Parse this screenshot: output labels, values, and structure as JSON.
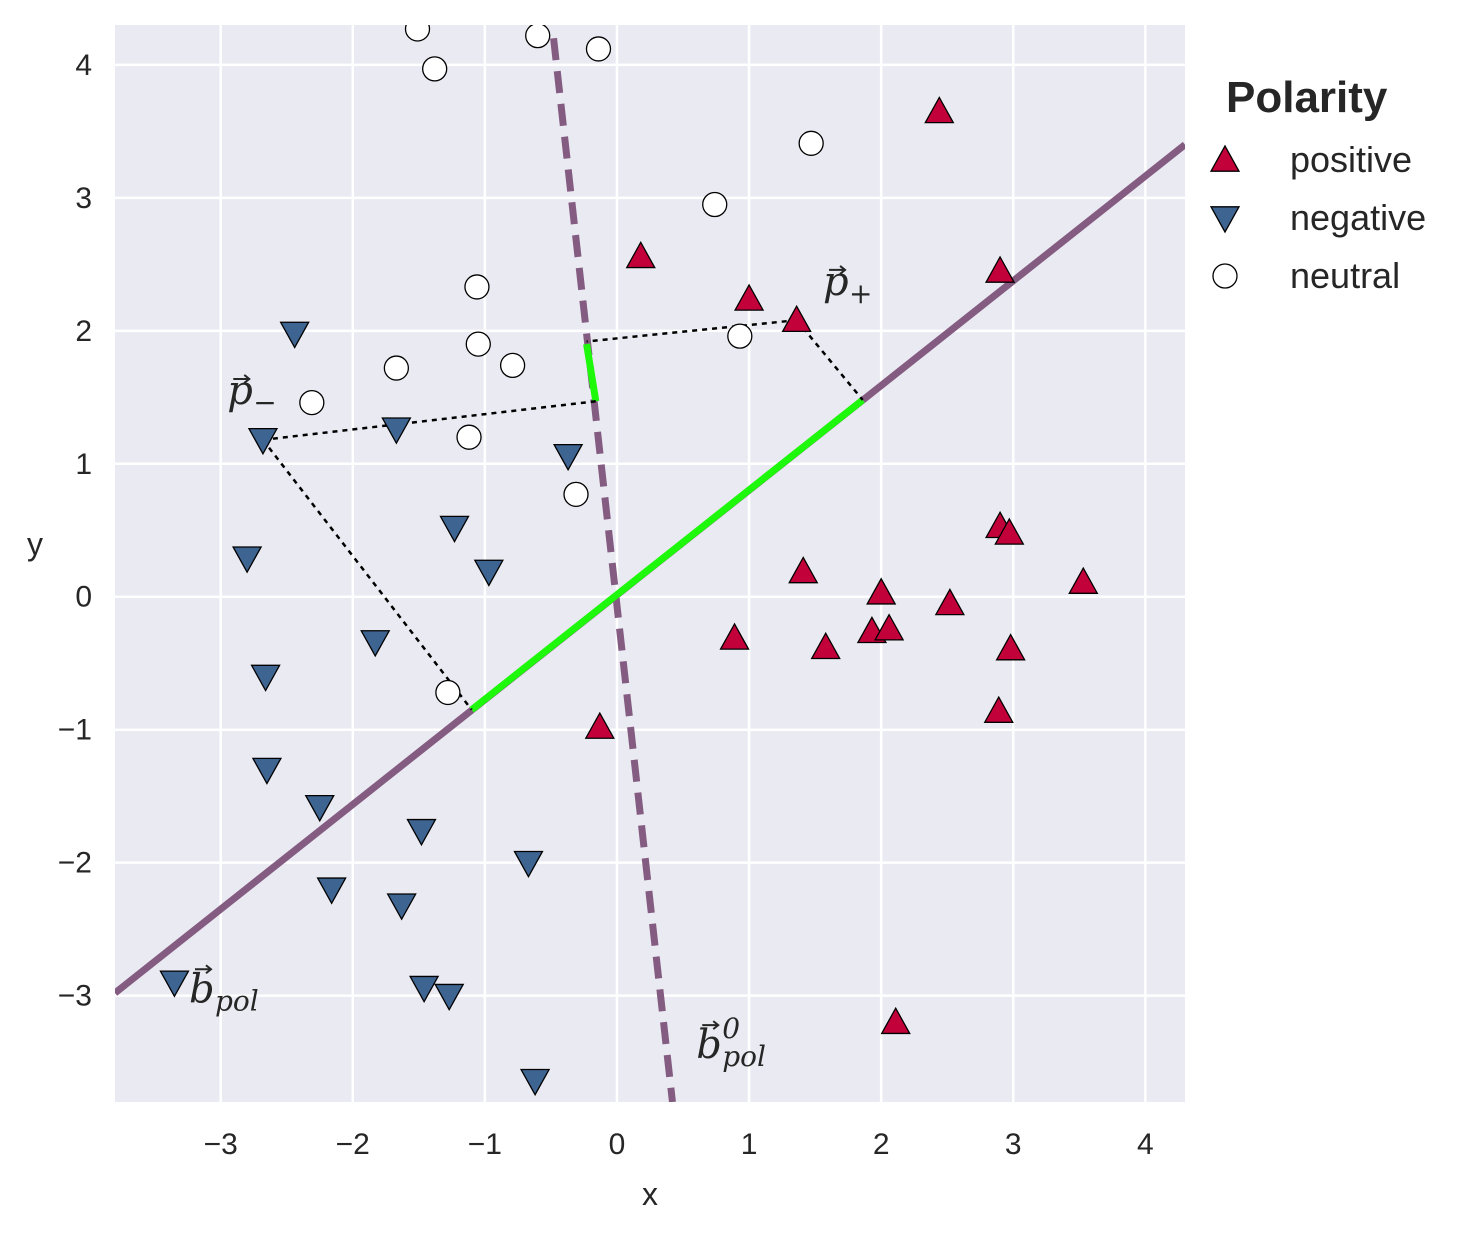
{
  "chart_data": {
    "type": "scatter",
    "xlabel": "x",
    "ylabel": "y",
    "xlim": [
      -3.8,
      4.3
    ],
    "ylim": [
      -3.8,
      4.3
    ],
    "xticks": [
      -3,
      -2,
      -1,
      0,
      1,
      2,
      3,
      4
    ],
    "yticks": [
      -3,
      -2,
      -1,
      0,
      1,
      2,
      3,
      4
    ],
    "xtick_labels": [
      "−3",
      "−2",
      "−1",
      "0",
      "1",
      "2",
      "3",
      "4"
    ],
    "ytick_labels": [
      "−3",
      "−2",
      "−1",
      "0",
      "1",
      "2",
      "3",
      "4"
    ],
    "grid": true,
    "background": "#EAEAF2",
    "legend": {
      "title": "Polarity",
      "placement": "outside-top-right"
    },
    "series": [
      {
        "name": "positive",
        "marker": "triangle-up",
        "color": "#C2003A",
        "points": [
          [
            2.44,
            3.65
          ],
          [
            0.18,
            2.56
          ],
          [
            1.0,
            2.24
          ],
          [
            2.9,
            2.45
          ],
          [
            1.36,
            2.08
          ],
          [
            2.9,
            0.53
          ],
          [
            2.97,
            0.48
          ],
          [
            3.53,
            0.11
          ],
          [
            1.41,
            0.19
          ],
          [
            2.0,
            0.03
          ],
          [
            2.52,
            -0.05
          ],
          [
            0.89,
            -0.31
          ],
          [
            1.58,
            -0.38
          ],
          [
            1.93,
            -0.26
          ],
          [
            2.06,
            -0.24
          ],
          [
            2.98,
            -0.39
          ],
          [
            2.89,
            -0.86
          ],
          [
            -0.13,
            -0.98
          ],
          [
            2.11,
            -3.2
          ]
        ]
      },
      {
        "name": "negative",
        "marker": "triangle-down",
        "color": "#3E6491",
        "points": [
          [
            -2.44,
            1.98
          ],
          [
            -2.68,
            1.18
          ],
          [
            -1.67,
            1.26
          ],
          [
            -0.37,
            1.06
          ],
          [
            -1.23,
            0.52
          ],
          [
            -2.8,
            0.29
          ],
          [
            -0.97,
            0.19
          ],
          [
            -1.83,
            -0.34
          ],
          [
            -2.66,
            -0.6
          ],
          [
            -2.65,
            -1.3
          ],
          [
            -2.25,
            -1.58
          ],
          [
            -1.48,
            -1.76
          ],
          [
            -2.16,
            -2.2
          ],
          [
            -0.67,
            -2.0
          ],
          [
            -1.63,
            -2.32
          ],
          [
            -1.46,
            -2.94
          ],
          [
            -1.27,
            -3.0
          ],
          [
            -3.35,
            -2.9
          ],
          [
            -0.62,
            -3.64
          ]
        ]
      },
      {
        "name": "neutral",
        "marker": "circle",
        "color": "#FFFFFF",
        "points": [
          [
            -1.51,
            4.27
          ],
          [
            -0.6,
            4.22
          ],
          [
            -0.14,
            4.12
          ],
          [
            -1.38,
            3.97
          ],
          [
            1.47,
            3.41
          ],
          [
            0.74,
            2.95
          ],
          [
            -1.06,
            2.33
          ],
          [
            -1.05,
            1.9
          ],
          [
            -0.79,
            1.74
          ],
          [
            -1.67,
            1.72
          ],
          [
            -2.31,
            1.46
          ],
          [
            0.93,
            1.96
          ],
          [
            -1.12,
            1.2
          ],
          [
            -0.31,
            0.77
          ],
          [
            -1.28,
            -0.72
          ]
        ]
      }
    ],
    "lines": [
      {
        "name": "b_pol",
        "style": "solid",
        "color": "#845C82",
        "x": [
          -3.8,
          4.3
        ],
        "y": [
          -2.98,
          3.4
        ]
      },
      {
        "name": "b_pol_0",
        "style": "dashed",
        "color": "#845C82",
        "x": [
          -0.48,
          0.42
        ],
        "y": [
          4.2,
          -3.8
        ]
      }
    ],
    "highlight_segments": [
      {
        "color": "#1EF90B",
        "x": [
          -1.1,
          1.86
        ],
        "y": [
          -0.85,
          1.48
        ]
      },
      {
        "color": "#1EF90B",
        "x": [
          -0.23,
          -0.16
        ],
        "y": [
          1.9,
          1.47
        ]
      }
    ],
    "projection_lines": [
      {
        "x": [
          -2.68,
          -0.16
        ],
        "y": [
          1.18,
          1.47
        ]
      },
      {
        "x": [
          -2.68,
          -1.1
        ],
        "y": [
          1.18,
          -0.85
        ]
      },
      {
        "x": [
          1.36,
          -0.23
        ],
        "y": [
          2.08,
          1.92
        ]
      },
      {
        "x": [
          1.36,
          1.86
        ],
        "y": [
          2.08,
          1.48
        ]
      }
    ],
    "annotations": [
      {
        "base": "p",
        "vector": true,
        "sub": "−",
        "sup": "",
        "x": -2.95,
        "y": 1.45
      },
      {
        "base": "p",
        "vector": true,
        "sub": "+",
        "sup": "",
        "x": 1.56,
        "y": 2.27
      },
      {
        "base": "b",
        "vector": true,
        "sub": "pol",
        "sup": "",
        "x": -3.24,
        "y": -3.05
      },
      {
        "base": "b",
        "vector": true,
        "sub": "pol",
        "sup": "0",
        "x": 0.6,
        "y": -3.47
      }
    ]
  }
}
